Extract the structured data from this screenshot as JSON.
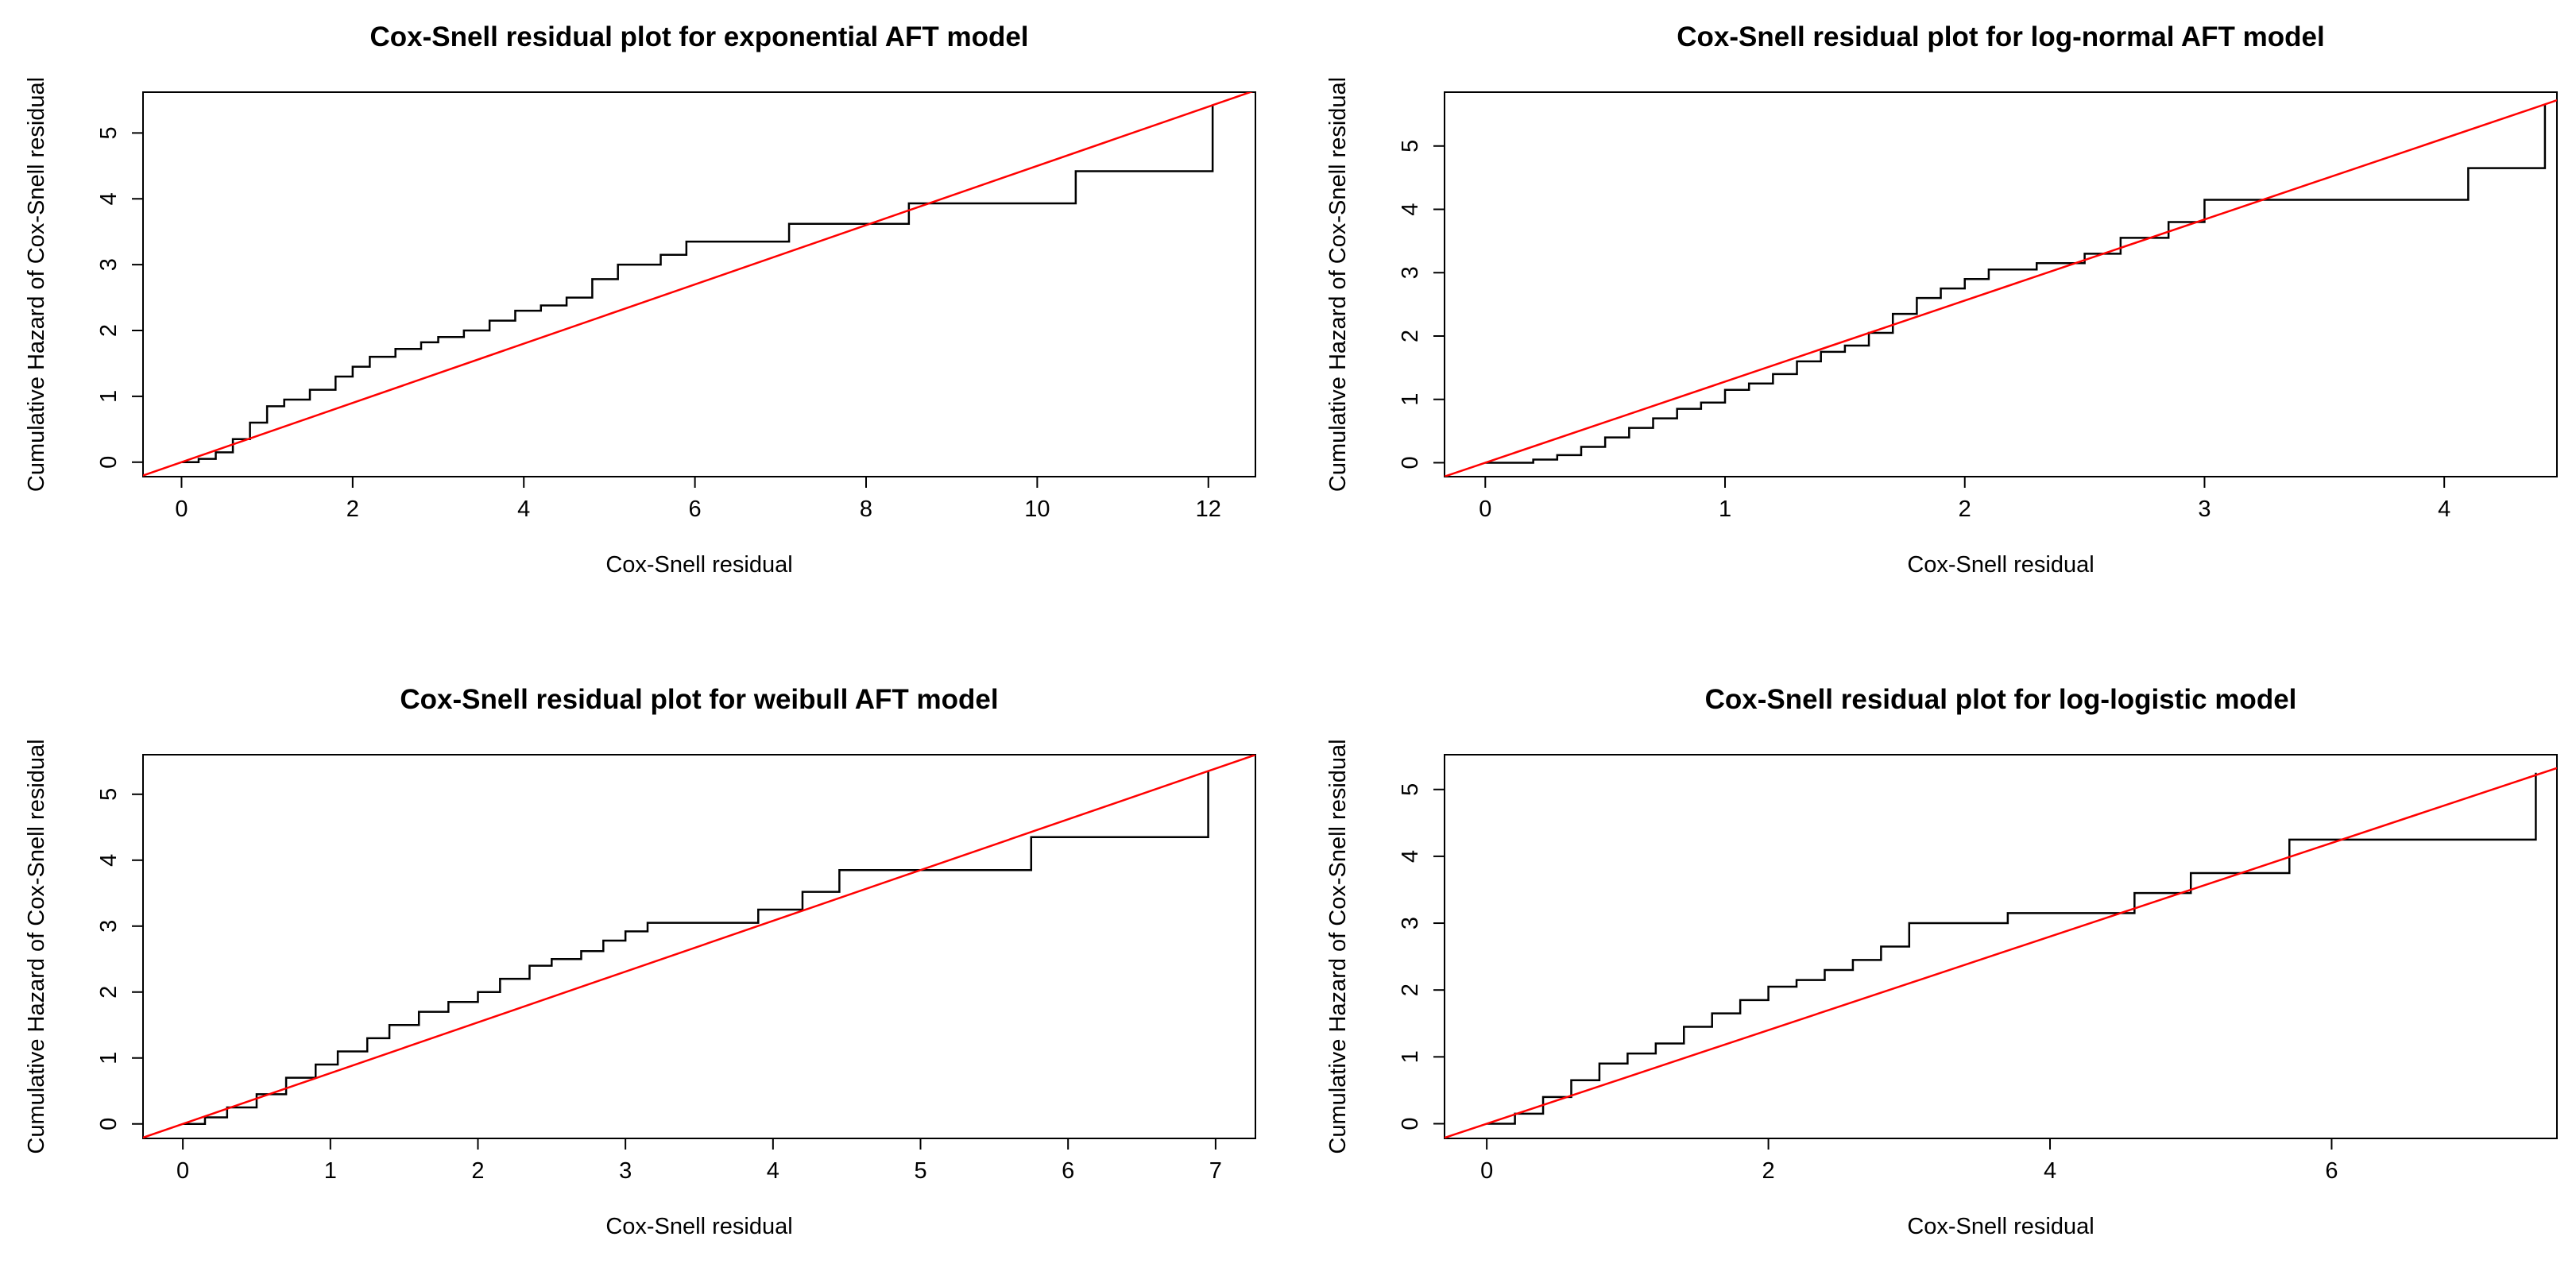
{
  "chart_data": [
    {
      "type": "line",
      "title": "Cox-Snell residual plot for exponential AFT model",
      "xlabel": "Cox-Snell residual",
      "ylabel": "Cumulative Hazard of Cox-Snell residual",
      "xlim": [
        -0.45,
        12.55
      ],
      "ylim": [
        -0.22,
        5.62
      ],
      "xticks": [
        0,
        2,
        4,
        6,
        8,
        10,
        12
      ],
      "yticks": [
        0,
        1,
        2,
        3,
        4,
        5
      ],
      "grid": false,
      "series": [
        {
          "kind": "step",
          "color": "#000000",
          "x": [
            0,
            0.2,
            0.4,
            0.6,
            0.8,
            1.0,
            1.2,
            1.5,
            1.8,
            2.0,
            2.2,
            2.5,
            2.8,
            3.0,
            3.3,
            3.6,
            3.9,
            4.2,
            4.5,
            4.8,
            5.1,
            5.6,
            5.9,
            7.1,
            8.5,
            10.45,
            12.05
          ],
          "y": [
            0,
            0.05,
            0.15,
            0.35,
            0.6,
            0.85,
            0.95,
            1.1,
            1.3,
            1.45,
            1.6,
            1.72,
            1.82,
            1.9,
            2.0,
            2.15,
            2.3,
            2.38,
            2.5,
            2.78,
            3.0,
            3.15,
            3.35,
            3.62,
            3.93,
            4.42,
            5.42
          ]
        },
        {
          "kind": "reference",
          "color": "#ff0000",
          "slope": 0.45,
          "intercept": 0
        }
      ]
    },
    {
      "type": "line",
      "title": "Cox-Snell residual plot for log-normal AFT model",
      "xlabel": "Cox-Snell residual",
      "ylabel": "Cumulative Hazard of Cox-Snell residual",
      "xlim": [
        -0.17,
        4.47
      ],
      "ylim": [
        -0.22,
        5.85
      ],
      "xticks": [
        0,
        1,
        2,
        3,
        4
      ],
      "yticks": [
        0,
        1,
        2,
        3,
        4,
        5
      ],
      "grid": false,
      "series": [
        {
          "kind": "step",
          "color": "#000000",
          "x": [
            0,
            0.2,
            0.3,
            0.4,
            0.5,
            0.6,
            0.7,
            0.8,
            0.9,
            1.0,
            1.1,
            1.2,
            1.3,
            1.4,
            1.5,
            1.6,
            1.7,
            1.8,
            1.9,
            2.0,
            2.1,
            2.3,
            2.5,
            2.65,
            2.85,
            3.0,
            4.1,
            4.42
          ],
          "y": [
            0,
            0.05,
            0.12,
            0.25,
            0.4,
            0.55,
            0.7,
            0.85,
            0.95,
            1.15,
            1.25,
            1.4,
            1.6,
            1.75,
            1.85,
            2.05,
            2.35,
            2.6,
            2.75,
            2.9,
            3.05,
            3.15,
            3.3,
            3.55,
            3.8,
            4.15,
            4.65,
            5.65
          ]
        },
        {
          "kind": "reference",
          "color": "#ff0000",
          "slope": 1.28,
          "intercept": 0
        }
      ]
    },
    {
      "type": "line",
      "title": "Cox-Snell residual plot for weibull AFT model",
      "xlabel": "Cox-Snell residual",
      "ylabel": "Cumulative Hazard of Cox-Snell residual",
      "xlim": [
        -0.27,
        7.27
      ],
      "ylim": [
        -0.22,
        5.6
      ],
      "xticks": [
        0,
        1,
        2,
        3,
        4,
        5,
        6,
        7
      ],
      "yticks": [
        0,
        1,
        2,
        3,
        4,
        5
      ],
      "grid": false,
      "series": [
        {
          "kind": "step",
          "color": "#000000",
          "x": [
            0,
            0.15,
            0.3,
            0.5,
            0.7,
            0.9,
            1.05,
            1.25,
            1.4,
            1.6,
            1.8,
            2.0,
            2.15,
            2.35,
            2.5,
            2.7,
            2.85,
            3.0,
            3.15,
            3.9,
            4.2,
            4.45,
            5.75,
            6.95
          ],
          "y": [
            0,
            0.1,
            0.25,
            0.45,
            0.7,
            0.9,
            1.1,
            1.3,
            1.5,
            1.7,
            1.85,
            2.0,
            2.2,
            2.4,
            2.5,
            2.62,
            2.78,
            2.92,
            3.05,
            3.25,
            3.52,
            3.85,
            4.35,
            5.35
          ]
        },
        {
          "kind": "reference",
          "color": "#ff0000",
          "slope": 0.77,
          "intercept": 0
        }
      ]
    },
    {
      "type": "line",
      "title": "Cox-Snell residual plot for log-logistic model",
      "xlabel": "Cox-Snell residual",
      "ylabel": "Cumulative Hazard of Cox-Snell residual",
      "xlim": [
        -0.3,
        7.6
      ],
      "ylim": [
        -0.22,
        5.52
      ],
      "xticks": [
        0,
        2,
        4,
        6
      ],
      "yticks": [
        0,
        1,
        2,
        3,
        4,
        5
      ],
      "grid": false,
      "series": [
        {
          "kind": "step",
          "color": "#000000",
          "x": [
            0,
            0.2,
            0.4,
            0.6,
            0.8,
            1.0,
            1.2,
            1.4,
            1.6,
            1.8,
            2.0,
            2.2,
            2.4,
            2.6,
            2.8,
            3.0,
            3.7,
            4.6,
            5.0,
            5.7,
            7.45
          ],
          "y": [
            0,
            0.15,
            0.4,
            0.65,
            0.9,
            1.05,
            1.2,
            1.45,
            1.65,
            1.85,
            2.05,
            2.15,
            2.3,
            2.45,
            2.65,
            3.0,
            3.15,
            3.45,
            3.75,
            4.25,
            5.25
          ]
        },
        {
          "kind": "reference",
          "color": "#ff0000",
          "slope": 0.7,
          "intercept": 0
        }
      ]
    }
  ]
}
